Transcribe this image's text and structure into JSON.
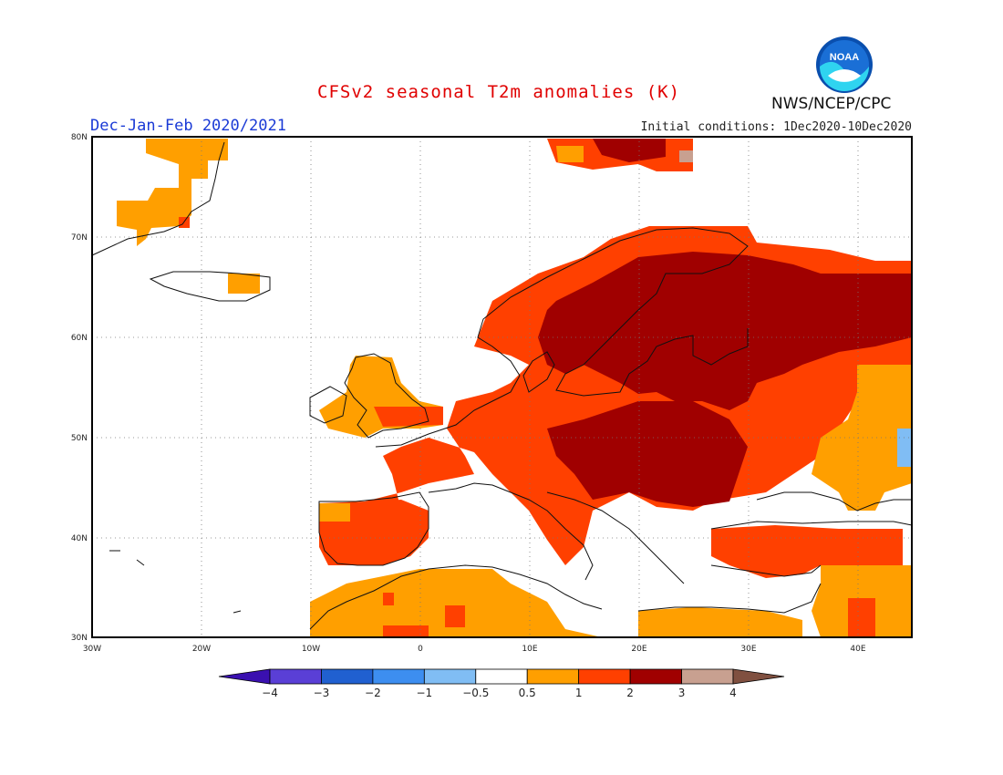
{
  "header": {
    "title": "CFSv2 seasonal T2m anomalies (K)",
    "season": "Dec-Jan-Feb 2020/2021",
    "initial_conditions": "Initial conditions: 1Dec2020-10Dec2020",
    "agency": "NWS/NCEP/CPC",
    "logo_text": "NOAA"
  },
  "map": {
    "lon_range": [
      -30,
      45
    ],
    "lat_range": [
      30,
      80
    ],
    "lat_ticks": [
      "80N",
      "70N",
      "60N",
      "50N",
      "40N",
      "30N"
    ],
    "lon_ticks": [
      "30W",
      "20W",
      "10W",
      "0",
      "10E",
      "20E",
      "30E",
      "40E"
    ],
    "grid": "dotted",
    "anomaly_regions": [
      {
        "name": "Svalbard",
        "category": "2-3"
      },
      {
        "name": "Greenland east coast",
        "category": "0.5-1"
      },
      {
        "name": "Scandinavia",
        "category": "1-2"
      },
      {
        "name": "Western Russia",
        "category": "2-3"
      },
      {
        "name": "Central Europe",
        "category": "1-2"
      },
      {
        "name": "Hungary / Romania",
        "category": "2-3"
      },
      {
        "name": "Iberia",
        "category": "1-2"
      },
      {
        "name": "North Africa",
        "category": "0.5-1"
      },
      {
        "name": "Turkey",
        "category": "1-2"
      },
      {
        "name": "Mediterranean",
        "category": "-0.5-0.5"
      },
      {
        "name": "Kazakh steppe edge",
        "category": "-1--0.5"
      }
    ]
  },
  "colorbar": {
    "colors": [
      "#3a10b0",
      "#5a3fd6",
      "#2060d0",
      "#3d8ef0",
      "#80bdf4",
      "#ffffff",
      "#ff9f00",
      "#ff4000",
      "#a00000",
      "#c8a090",
      "#805040"
    ],
    "labels": [
      "-4",
      "-3",
      "-2",
      "-1",
      "-0.5",
      "0.5",
      "1",
      "2",
      "3",
      "4"
    ]
  },
  "palette": {
    "0.5-1": "#ff9f00",
    "1-2": "#ff4000",
    "2-3": "#a00000",
    "3-4": "#c8a090",
    "-1--0.5": "#80bdf4",
    "-0.5-0.5": "#ffffff"
  }
}
